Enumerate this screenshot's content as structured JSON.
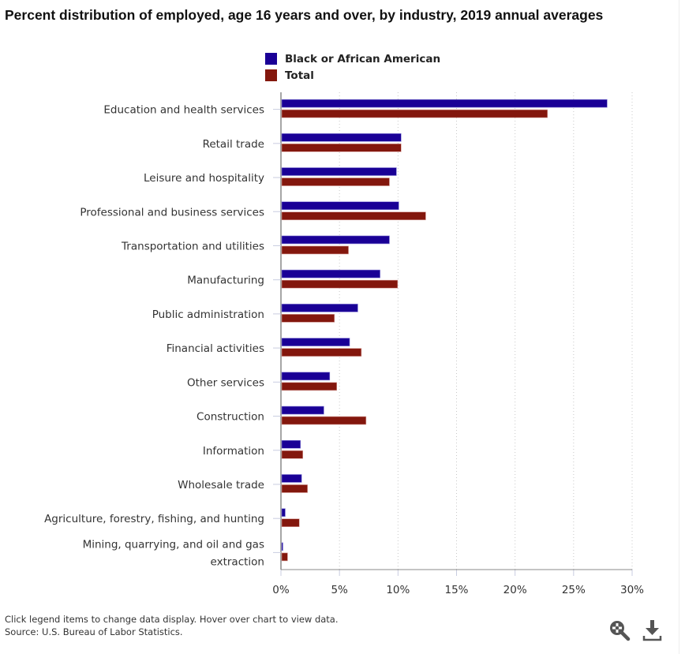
{
  "chart_data": {
    "type": "bar",
    "orientation": "horizontal",
    "title": "Percent distribution of employed, age 16 years and over, by industry, 2019 annual averages",
    "xlabel": "",
    "ylabel": "",
    "xlim": [
      0,
      30
    ],
    "x_ticks": [
      "0%",
      "5%",
      "10%",
      "15%",
      "20%",
      "25%",
      "30%"
    ],
    "x_tick_values": [
      0,
      5,
      10,
      15,
      20,
      25,
      30
    ],
    "grid": "vertical dotted",
    "legend_position": "top-center",
    "categories": [
      [
        "Education and health services"
      ],
      [
        "Retail trade"
      ],
      [
        "Leisure and hospitality"
      ],
      [
        "Professional and business services"
      ],
      [
        "Transportation and utilities"
      ],
      [
        "Manufacturing"
      ],
      [
        "Public administration"
      ],
      [
        "Financial activities"
      ],
      [
        "Other services"
      ],
      [
        "Construction"
      ],
      [
        "Information"
      ],
      [
        "Wholesale trade"
      ],
      [
        "Agriculture, forestry, fishing, and hunting"
      ],
      [
        "Mining, quarrying, and oil and gas",
        "extraction"
      ]
    ],
    "series": [
      {
        "name": "Black or African American",
        "color": "#1a0096",
        "values": [
          27.8,
          10.2,
          9.8,
          10.0,
          9.2,
          8.4,
          6.5,
          5.8,
          4.1,
          3.6,
          1.6,
          1.7,
          0.3,
          0.1
        ]
      },
      {
        "name": "Total",
        "color": "#83170d",
        "values": [
          22.7,
          10.2,
          9.2,
          12.3,
          5.7,
          9.9,
          4.5,
          6.8,
          4.7,
          7.2,
          1.8,
          2.2,
          1.5,
          0.5
        ]
      }
    ]
  },
  "legend": {
    "items": [
      {
        "label": "Black or African American",
        "color": "#1a0096"
      },
      {
        "label": "Total",
        "color": "#83170d"
      }
    ]
  },
  "footer": {
    "note": "Click legend items to change data display. Hover over chart to view data.",
    "source": "Source: U.S. Bureau of Labor Statistics."
  },
  "toolbar": {
    "zoom_icon": "zoom-magnifier-icon",
    "download_icon": "download-icon"
  }
}
